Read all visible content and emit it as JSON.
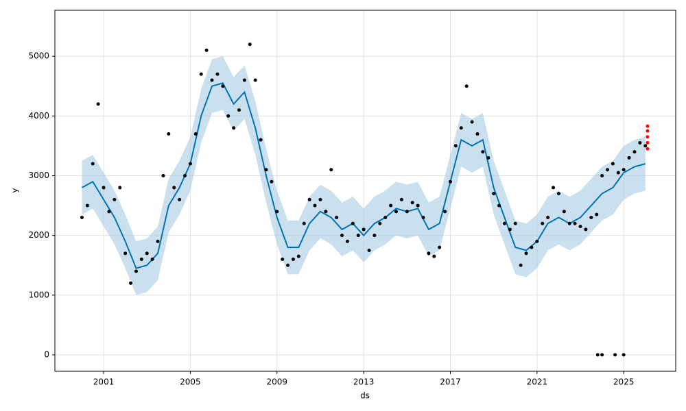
{
  "chart_data": {
    "type": "scatter",
    "xlabel": "ds",
    "ylabel": "y",
    "xlim": [
      1998.75,
      2027.4
    ],
    "ylim": [
      -275,
      5770
    ],
    "xticks": [
      2001,
      2005,
      2009,
      2013,
      2017,
      2021,
      2025
    ],
    "yticks": [
      0,
      1000,
      2000,
      3000,
      4000,
      5000
    ],
    "grid": true,
    "series": [
      {
        "type": "line",
        "color": "#0072b2",
        "band_color": "#a6cbe3",
        "x": [
          2000.0,
          2000.5,
          2001.0,
          2001.5,
          2002.0,
          2002.5,
          2003.0,
          2003.5,
          2004.0,
          2004.5,
          2005.0,
          2005.5,
          2006.0,
          2006.5,
          2007.0,
          2007.5,
          2008.0,
          2008.5,
          2009.0,
          2009.5,
          2010.0,
          2010.5,
          2011.0,
          2011.5,
          2012.0,
          2012.5,
          2013.0,
          2013.5,
          2014.0,
          2014.5,
          2015.0,
          2015.5,
          2016.0,
          2016.5,
          2017.0,
          2017.5,
          2018.0,
          2018.5,
          2019.0,
          2019.5,
          2020.0,
          2020.5,
          2021.0,
          2021.5,
          2022.0,
          2022.5,
          2023.0,
          2023.5,
          2024.0,
          2024.5,
          2025.0,
          2025.5,
          2026.0
        ],
        "values": [
          2800,
          2900,
          2600,
          2300,
          1900,
          1450,
          1500,
          1700,
          2500,
          2800,
          3200,
          4000,
          4500,
          4550,
          4200,
          4400,
          3800,
          3000,
          2300,
          1800,
          1800,
          2200,
          2400,
          2300,
          2100,
          2200,
          2000,
          2200,
          2300,
          2450,
          2400,
          2450,
          2100,
          2200,
          2900,
          3600,
          3500,
          3600,
          2800,
          2300,
          1800,
          1750,
          1900,
          2200,
          2300,
          2200,
          2300,
          2500,
          2700,
          2800,
          3050,
          3150,
          3200
        ],
        "lower": [
          2350,
          2450,
          2150,
          1850,
          1450,
          1000,
          1050,
          1250,
          2050,
          2350,
          2750,
          3550,
          4050,
          4100,
          3750,
          3950,
          3350,
          2550,
          1850,
          1350,
          1350,
          1750,
          1950,
          1850,
          1650,
          1750,
          1550,
          1750,
          1850,
          2000,
          1950,
          2000,
          1650,
          1750,
          2450,
          3150,
          3050,
          3150,
          2350,
          1850,
          1350,
          1300,
          1450,
          1750,
          1850,
          1750,
          1850,
          2050,
          2250,
          2350,
          2600,
          2700,
          2750
        ],
        "upper": [
          3250,
          3350,
          3050,
          2750,
          2350,
          1900,
          1950,
          2150,
          2950,
          3250,
          3650,
          4450,
          4950,
          5000,
          4650,
          4850,
          4250,
          3450,
          2750,
          2250,
          2250,
          2650,
          2850,
          2750,
          2550,
          2650,
          2450,
          2650,
          2750,
          2900,
          2850,
          2900,
          2550,
          2650,
          3350,
          4050,
          3950,
          4050,
          3250,
          2750,
          2250,
          2200,
          2350,
          2650,
          2750,
          2650,
          2750,
          2950,
          3150,
          3250,
          3500,
          3600,
          3650
        ]
      },
      {
        "type": "scatter",
        "color": "#000000",
        "x": [
          2000.0,
          2000.25,
          2000.5,
          2000.75,
          2001.0,
          2001.25,
          2001.5,
          2001.75,
          2002.0,
          2002.25,
          2002.5,
          2002.75,
          2003.0,
          2003.25,
          2003.5,
          2003.75,
          2004.0,
          2004.25,
          2004.5,
          2004.75,
          2005.0,
          2005.25,
          2005.5,
          2005.75,
          2006.0,
          2006.25,
          2006.5,
          2006.75,
          2007.0,
          2007.25,
          2007.5,
          2007.75,
          2008.0,
          2008.25,
          2008.5,
          2008.75,
          2009.0,
          2009.25,
          2009.5,
          2009.75,
          2010.0,
          2010.25,
          2010.5,
          2010.75,
          2011.0,
          2011.25,
          2011.5,
          2011.75,
          2012.0,
          2012.25,
          2012.5,
          2012.75,
          2013.0,
          2013.25,
          2013.5,
          2013.75,
          2014.0,
          2014.25,
          2014.5,
          2014.75,
          2015.0,
          2015.25,
          2015.5,
          2015.75,
          2016.0,
          2016.25,
          2016.5,
          2016.75,
          2017.0,
          2017.25,
          2017.5,
          2017.75,
          2018.0,
          2018.25,
          2018.5,
          2018.75,
          2019.0,
          2019.25,
          2019.5,
          2019.75,
          2020.0,
          2020.25,
          2020.5,
          2020.75,
          2021.0,
          2021.25,
          2021.5,
          2021.75,
          2022.0,
          2022.25,
          2022.5,
          2022.75,
          2023.0,
          2023.25,
          2023.5,
          2023.75,
          2024.0,
          2024.25,
          2024.5,
          2024.75,
          2025.0,
          2025.25,
          2025.5,
          2025.75,
          2026.0
        ],
        "values": [
          2300,
          2500,
          3200,
          4200,
          2800,
          2400,
          2600,
          2800,
          1700,
          1200,
          1400,
          1600,
          1700,
          1600,
          1900,
          3000,
          3700,
          2800,
          2600,
          3000,
          3200,
          3700,
          4700,
          5100,
          4600,
          4700,
          4500,
          4000,
          3800,
          4100,
          4600,
          5200,
          4600,
          3600,
          3100,
          2900,
          2400,
          1600,
          1500,
          1600,
          1650,
          2200,
          2600,
          2500,
          2600,
          2400,
          3100,
          2300,
          2000,
          1900,
          2200,
          2000,
          2100,
          1750,
          2000,
          2200,
          2300,
          2500,
          2400,
          2600,
          2400,
          2550,
          2500,
          2300,
          1700,
          1650,
          1800,
          2400,
          2900,
          3500,
          3800,
          4500,
          3900,
          3700,
          3400,
          3300,
          2700,
          2500,
          2200,
          2100,
          2200,
          1500,
          1700,
          1800,
          1900,
          2200,
          2300,
          2800,
          2700,
          2400,
          2200,
          2200,
          2150,
          2100,
          2300,
          2350,
          3000,
          3100,
          3200,
          3050,
          3100,
          3300,
          3400,
          3550,
          3500
        ]
      },
      {
        "type": "scatter",
        "color": "#000000",
        "x": [
          2023.8,
          2024.0,
          2024.6,
          2025.0
        ],
        "values": [
          0,
          0,
          0,
          0
        ]
      },
      {
        "type": "scatter",
        "color": "#ff0000",
        "x": [
          2026.1,
          2026.1,
          2026.1,
          2026.1,
          2026.1
        ],
        "values": [
          3450,
          3550,
          3650,
          3750,
          3830
        ]
      }
    ]
  }
}
